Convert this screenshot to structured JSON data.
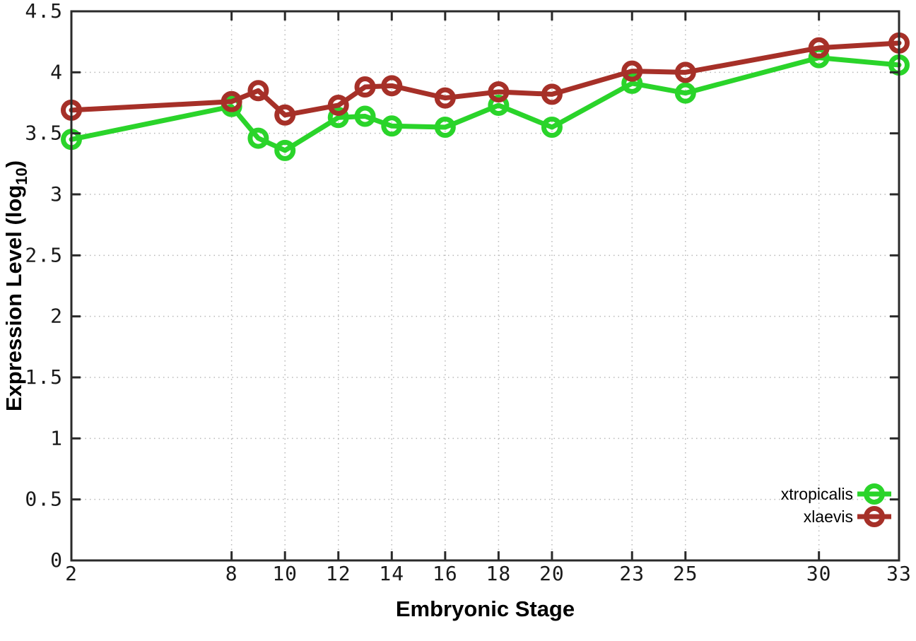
{
  "chart_data": {
    "type": "line",
    "x": [
      2,
      8,
      9,
      10,
      12,
      13,
      14,
      16,
      18,
      20,
      23,
      25,
      30,
      33
    ],
    "series": [
      {
        "name": "xtropicalis",
        "color": "#2ad42a",
        "values": [
          3.45,
          3.72,
          3.46,
          3.36,
          3.63,
          3.64,
          3.56,
          3.55,
          3.73,
          3.55,
          3.91,
          3.83,
          4.12,
          4.06
        ]
      },
      {
        "name": "xlaevis",
        "color": "#a63028",
        "values": [
          3.69,
          3.76,
          3.85,
          3.65,
          3.73,
          3.88,
          3.89,
          3.79,
          3.84,
          3.82,
          4.01,
          4.0,
          4.2,
          4.24
        ]
      }
    ],
    "title": "",
    "xlabel": "Embryonic Stage",
    "ylabel": {
      "pre": "Expression Level (log",
      "sub": "10",
      "post": ")"
    },
    "x_ticks": [
      2,
      8,
      10,
      12,
      14,
      16,
      18,
      20,
      23,
      25,
      30,
      33
    ],
    "y_ticks": [
      0,
      0.5,
      1,
      1.5,
      2,
      2.5,
      3,
      3.5,
      4,
      4.5
    ],
    "y_tick_labels": [
      "0",
      "0.5",
      "1",
      "1.5",
      "2",
      "2.5",
      "3",
      "3.5",
      "4",
      "4.5"
    ],
    "xlim": [
      2,
      33
    ],
    "ylim": [
      0,
      4.5
    ],
    "grid": true,
    "legend_position": "bottom-right",
    "legend": [
      "xtropicalis",
      "xlaevis"
    ],
    "colors": {
      "grid": "#b8b8b8",
      "frame": "#2a2a2a",
      "tick_text": "#1a1a1a"
    },
    "marker": "open-circle"
  }
}
